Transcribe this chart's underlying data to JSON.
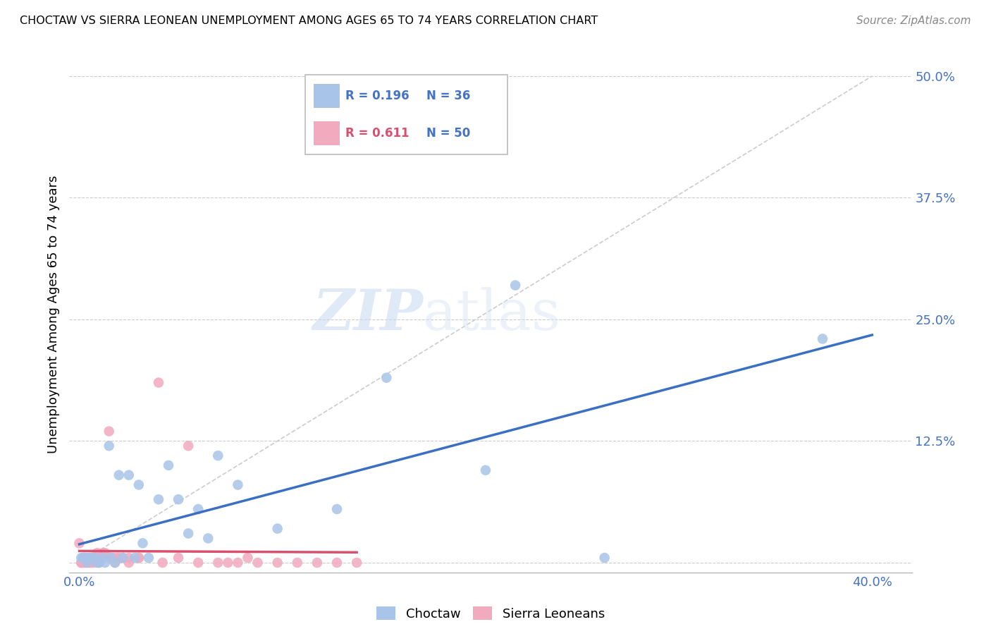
{
  "title": "CHOCTAW VS SIERRA LEONEAN UNEMPLOYMENT AMONG AGES 65 TO 74 YEARS CORRELATION CHART",
  "source": "Source: ZipAtlas.com",
  "ylabel": "Unemployment Among Ages 65 to 74 years",
  "xlim": [
    -0.005,
    0.42
  ],
  "ylim": [
    -0.01,
    0.52
  ],
  "xticks": [
    0.0,
    0.1,
    0.2,
    0.3,
    0.4
  ],
  "xticklabels": [
    "0.0%",
    "",
    "",
    "",
    "40.0%"
  ],
  "yticks": [
    0.0,
    0.125,
    0.25,
    0.375,
    0.5
  ],
  "yticklabels": [
    "",
    "12.5%",
    "25.0%",
    "37.5%",
    "50.0%"
  ],
  "choctaw_R": 0.196,
  "choctaw_N": 36,
  "sierra_R": 0.611,
  "sierra_N": 50,
  "choctaw_color": "#a8c4e8",
  "sierra_color": "#f2aabf",
  "choctaw_line_color": "#3a6fc4",
  "sierra_line_color": "#d94f6e",
  "diagonal_color": "#cccccc",
  "watermark_zip": "ZIP",
  "watermark_atlas": "atlas",
  "choctaw_x": [
    0.001,
    0.002,
    0.003,
    0.004,
    0.005,
    0.006,
    0.008,
    0.009,
    0.01,
    0.012,
    0.013,
    0.015,
    0.016,
    0.018,
    0.02,
    0.022,
    0.025,
    0.028,
    0.03,
    0.032,
    0.035,
    0.04,
    0.045,
    0.05,
    0.055,
    0.06,
    0.065,
    0.07,
    0.08,
    0.1,
    0.13,
    0.155,
    0.205,
    0.22,
    0.265,
    0.375
  ],
  "choctaw_y": [
    0.005,
    0.005,
    0.005,
    0.0,
    0.005,
    0.005,
    0.005,
    0.0,
    0.0,
    0.005,
    0.0,
    0.12,
    0.005,
    0.0,
    0.09,
    0.005,
    0.09,
    0.005,
    0.08,
    0.02,
    0.005,
    0.065,
    0.1,
    0.065,
    0.03,
    0.055,
    0.025,
    0.11,
    0.08,
    0.035,
    0.055,
    0.19,
    0.095,
    0.285,
    0.005,
    0.23
  ],
  "sierra_x": [
    0.0,
    0.001,
    0.001,
    0.002,
    0.002,
    0.003,
    0.003,
    0.003,
    0.004,
    0.004,
    0.005,
    0.005,
    0.005,
    0.006,
    0.006,
    0.007,
    0.007,
    0.008,
    0.008,
    0.009,
    0.01,
    0.01,
    0.012,
    0.013,
    0.015,
    0.016,
    0.017,
    0.018,
    0.019,
    0.02,
    0.022,
    0.025,
    0.025,
    0.03,
    0.03,
    0.04,
    0.042,
    0.05,
    0.055,
    0.06,
    0.07,
    0.075,
    0.08,
    0.085,
    0.09,
    0.1,
    0.11,
    0.12,
    0.13,
    0.14
  ],
  "sierra_y": [
    0.02,
    0.0,
    0.0,
    0.005,
    0.0,
    0.0,
    0.005,
    0.0,
    0.005,
    0.0,
    0.0,
    0.005,
    0.0,
    0.0,
    0.005,
    0.0,
    0.005,
    0.005,
    0.005,
    0.01,
    0.0,
    0.005,
    0.01,
    0.01,
    0.135,
    0.005,
    0.005,
    0.0,
    0.005,
    0.005,
    0.005,
    0.005,
    0.0,
    0.005,
    0.005,
    0.185,
    0.0,
    0.005,
    0.12,
    0.0,
    0.0,
    0.0,
    0.0,
    0.005,
    0.0,
    0.0,
    0.0,
    0.0,
    0.0,
    0.0
  ]
}
